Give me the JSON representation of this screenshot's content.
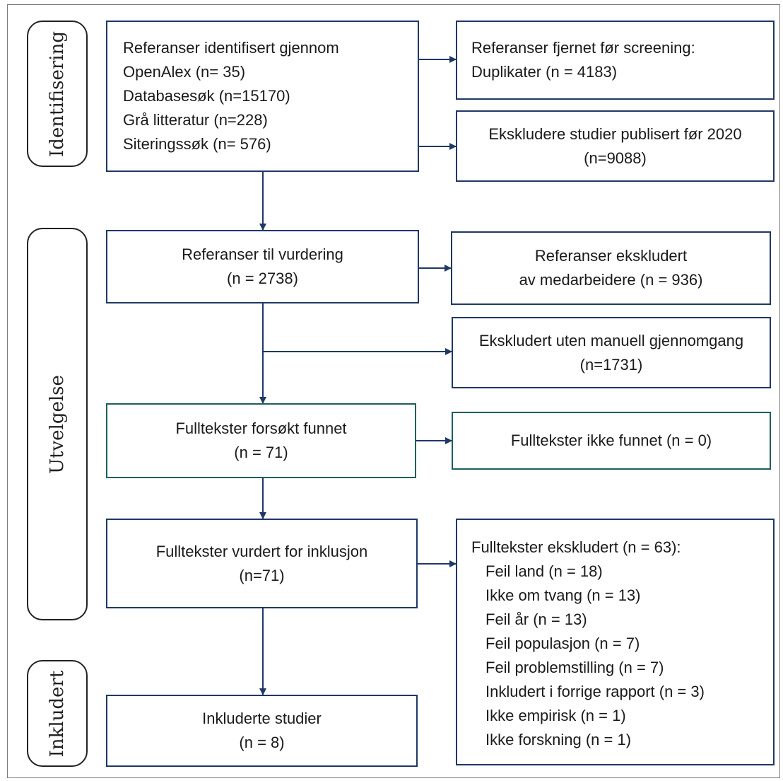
{
  "phases": {
    "identification": "Identifisering",
    "selection": "Utvelgelse",
    "included": "Inkludert"
  },
  "boxes": {
    "identified": {
      "lines": [
        "Referanser identifisert gjennom",
        "OpenAlex (n= 35)",
        "Databasesøk (n=15170)",
        "Grå litteratur (n=228)",
        "Siteringssøk (n= 576)"
      ]
    },
    "removed": {
      "lines": [
        "Referanser fjernet før screening:",
        "Duplikater (n = 4183)"
      ]
    },
    "excluded_pre2020": {
      "lines": [
        "Ekskludere studier publisert før 2020",
        "(n=9088)"
      ]
    },
    "to_assess": {
      "lines": [
        "Referanser til vurdering",
        "(n = 2738)"
      ]
    },
    "excluded_staff": {
      "lines": [
        "Referanser ekskludert",
        "av medarbeidere (n = 936)"
      ]
    },
    "excluded_auto": {
      "lines": [
        "Ekskludert uten manuell gjennomgang",
        "(n=1731)"
      ]
    },
    "fulltext_sought": {
      "lines": [
        "Fulltekster forsøkt funnet",
        "(n = 71)"
      ]
    },
    "fulltext_not_found": {
      "lines": [
        "Fulltekster ikke funnet (n = 0)"
      ]
    },
    "fulltext_assessed": {
      "lines": [
        "Fulltekster vurdert for inklusjon",
        "(n=71)"
      ]
    },
    "fulltext_excluded": {
      "title": "Fulltekster ekskludert (n = 63):",
      "reasons": [
        "Feil land (n = 18)",
        "Ikke om tvang (n = 13)",
        "Feil år (n = 13)",
        "Feil populasjon (n = 7)",
        "Feil problemstilling (n = 7)",
        "Inkludert i forrige rapport (n = 3)",
        "Ikke empirisk (n = 1)",
        "Ikke forskning (n = 1)"
      ]
    },
    "included_studies": {
      "lines": [
        "Inkluderte studier",
        "(n = 8)"
      ]
    }
  },
  "colors": {
    "box_border": "#1f3864",
    "teal_border": "#1f5f5f",
    "arrow": "#1f3864"
  }
}
